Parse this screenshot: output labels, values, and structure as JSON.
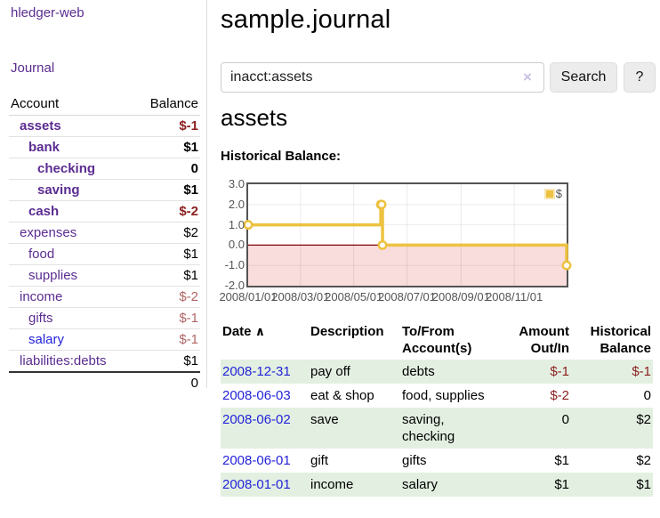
{
  "colors": {
    "purple": "#5b2d91",
    "link_blue": "#2323d9",
    "neg_strong": "#8b1f1f",
    "neg_soft": "#b06565",
    "row_green": "#e3f0e1",
    "chart_gold": "#edc240",
    "neg_region_pink": "#f9dcdc",
    "zero_line": "#800000"
  },
  "app": {
    "title": "hledger-web",
    "nav_journal": "Journal"
  },
  "sidebar": {
    "header": {
      "account": "Account",
      "balance": "Balance"
    },
    "accounts": [
      {
        "name": "assets",
        "balance": "$-1",
        "indent": 0,
        "bold": true,
        "neg": "strong"
      },
      {
        "name": "bank",
        "balance": "$1",
        "indent": 1,
        "bold": true,
        "neg": ""
      },
      {
        "name": "checking",
        "balance": "0",
        "indent": 2,
        "bold": true,
        "neg": ""
      },
      {
        "name": "saving",
        "balance": "$1",
        "indent": 2,
        "bold": true,
        "neg": ""
      },
      {
        "name": "cash",
        "balance": "$-2",
        "indent": 1,
        "bold": true,
        "neg": "strong"
      },
      {
        "name": "expenses",
        "balance": "$2",
        "indent": 0,
        "bold": false,
        "neg": ""
      },
      {
        "name": "food",
        "balance": "$1",
        "indent": 1,
        "bold": false,
        "neg": ""
      },
      {
        "name": "supplies",
        "balance": "$1",
        "indent": 1,
        "bold": false,
        "neg": ""
      },
      {
        "name": "income",
        "balance": "$-2",
        "indent": 0,
        "bold": false,
        "neg": "soft"
      },
      {
        "name": "gifts",
        "balance": "$-1",
        "indent": 1,
        "bold": false,
        "neg": "soft"
      },
      {
        "name": "salary",
        "balance": "$-1",
        "indent": 1,
        "bold": false,
        "neg": "soft",
        "link": "blue"
      },
      {
        "name": "liabilities:debts",
        "balance": "$1",
        "indent": 0,
        "bold": false,
        "neg": ""
      }
    ],
    "total": "0"
  },
  "header": {
    "title": "sample.journal"
  },
  "search": {
    "value": "inacct:assets",
    "clear_icon": "×",
    "button_label": "Search",
    "help_label": "?"
  },
  "account_page": {
    "heading": "assets",
    "chart_title": "Historical Balance:"
  },
  "chart_data": {
    "type": "line",
    "step": true,
    "title": "Historical Balance:",
    "series": [
      {
        "name": "$",
        "color": "#edc240",
        "x": [
          "2008-01-01",
          "2008-06-01",
          "2008-06-02",
          "2008-06-03",
          "2008-12-31"
        ],
        "y": [
          1,
          2,
          2,
          0,
          -1
        ]
      }
    ],
    "xlim": [
      "2008-01-01",
      "2008-12-31"
    ],
    "ylim": [
      -2,
      3
    ],
    "y_ticks": [
      {
        "v": 3,
        "label": "3.0"
      },
      {
        "v": 2,
        "label": "2.0"
      },
      {
        "v": 1,
        "label": "1.0"
      },
      {
        "v": 0,
        "label": "0.0"
      },
      {
        "v": -1,
        "label": "-1.0"
      },
      {
        "v": -2,
        "label": "-2.0"
      }
    ],
    "x_ticks": [
      {
        "d": "2008-01-01",
        "label": "2008/01/01"
      },
      {
        "d": "2008-03-01",
        "label": "2008/03/01"
      },
      {
        "d": "2008-05-01",
        "label": "2008/05/01"
      },
      {
        "d": "2008-07-01",
        "label": "2008/07/01"
      },
      {
        "d": "2008-09-01",
        "label": "2008/09/01"
      },
      {
        "d": "2008-11-01",
        "label": "2008/11/01"
      }
    ],
    "legend": {
      "position": "top-right",
      "label": "$"
    },
    "grid": true,
    "negative_region": true,
    "zero_line": true
  },
  "register": {
    "sort_caret": "∧",
    "columns": [
      "Date",
      "Description",
      "To/From Account(s)",
      "Amount Out/In",
      "Historical Balance"
    ],
    "rows": [
      {
        "date": "2008-12-31",
        "description": "pay off",
        "accounts": "debts",
        "amount": "$-1",
        "amount_neg": true,
        "balance": "$-1",
        "balance_neg": true
      },
      {
        "date": "2008-06-03",
        "description": "eat & shop",
        "accounts": "food, supplies",
        "amount": "$-2",
        "amount_neg": true,
        "balance": "0",
        "balance_neg": false
      },
      {
        "date": "2008-06-02",
        "description": "save",
        "accounts": "saving, checking",
        "amount": "0",
        "amount_neg": false,
        "balance": "$2",
        "balance_neg": false
      },
      {
        "date": "2008-06-01",
        "description": "gift",
        "accounts": "gifts",
        "amount": "$1",
        "amount_neg": false,
        "balance": "$2",
        "balance_neg": false
      },
      {
        "date": "2008-01-01",
        "description": "income",
        "accounts": "salary",
        "amount": "$1",
        "amount_neg": false,
        "balance": "$1",
        "balance_neg": false
      }
    ]
  }
}
